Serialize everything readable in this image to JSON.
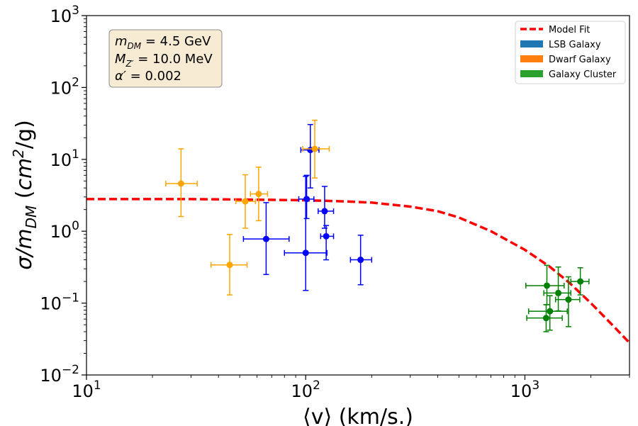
{
  "chart_data": {
    "type": "scatter",
    "title": "",
    "xlabel": "⟨v⟩ (km/s.)",
    "ylabel": "σ/m_DM (cm²/g)",
    "xscale": "log",
    "yscale": "log",
    "xlim": [
      10,
      3000
    ],
    "ylim": [
      0.01,
      1000
    ],
    "x_ticks": [
      {
        "base": "10",
        "exp": "1",
        "value": 10
      },
      {
        "base": "10",
        "exp": "2",
        "value": 100
      },
      {
        "base": "10",
        "exp": "3",
        "value": 1000
      }
    ],
    "y_ticks": [
      {
        "base": "10",
        "exp": "−2",
        "value": 0.01
      },
      {
        "base": "10",
        "exp": "−1",
        "value": 0.1
      },
      {
        "base": "10",
        "exp": "0",
        "value": 1
      },
      {
        "base": "10",
        "exp": "1",
        "value": 10
      },
      {
        "base": "10",
        "exp": "2",
        "value": 100
      },
      {
        "base": "10",
        "exp": "3",
        "value": 1000
      }
    ],
    "annotation": {
      "line1": {
        "sym": "m",
        "sub": "DM",
        "rest": " = 4.5 GeV"
      },
      "line2": {
        "sym": "M",
        "sub": "Z′",
        "rest": " = 10.0 MeV"
      },
      "line3": {
        "sym": "α′",
        "sub": "",
        "rest": " = 0.002"
      }
    },
    "legend_position": "upper-right",
    "series": [
      {
        "name": "Model Fit",
        "kind": "line",
        "style": "dashed",
        "color": "#ff0000",
        "x": [
          10,
          30,
          60,
          100,
          150,
          200,
          300,
          400,
          500,
          700,
          1000,
          1300,
          1600,
          2000,
          2500,
          3000
        ],
        "y": [
          2.8,
          2.8,
          2.75,
          2.7,
          2.6,
          2.5,
          2.2,
          1.9,
          1.55,
          1.0,
          0.55,
          0.32,
          0.19,
          0.1,
          0.05,
          0.028
        ]
      },
      {
        "name": "LSB Galaxy",
        "kind": "errorbar",
        "color": "#0000ff",
        "legend_color": "#1f77b4",
        "points": [
          {
            "x": 105,
            "y": 13.5,
            "xerr": [
              10,
              10
            ],
            "yerr": [
              9.5,
              17
            ]
          },
          {
            "x": 101,
            "y": 2.8,
            "xerr": [
              8,
              8
            ],
            "yerr": [
              1.3,
              3.2
            ]
          },
          {
            "x": 122,
            "y": 1.9,
            "xerr": [
              8,
              12
            ],
            "yerr": [
              0.8,
              2.3
            ]
          },
          {
            "x": 124,
            "y": 0.85,
            "xerr": [
              7,
              10
            ],
            "yerr": [
              0.45,
              0.35
            ]
          },
          {
            "x": 66,
            "y": 0.78,
            "xerr": [
              14,
              18
            ],
            "yerr": [
              0.53,
              1.72
            ]
          },
          {
            "x": 100,
            "y": 0.5,
            "xerr": [
              20,
              25
            ],
            "yerr": [
              0.35,
              5.3
            ]
          },
          {
            "x": 178,
            "y": 0.4,
            "xerr": [
              18,
              22
            ],
            "yerr": [
              0.22,
              0.48
            ]
          }
        ]
      },
      {
        "name": "Dwarf Galaxy",
        "kind": "errorbar",
        "color": "#ffa500",
        "legend_color": "#ff7f0e",
        "points": [
          {
            "x": 27,
            "y": 4.6,
            "xerr": [
              4,
              5
            ],
            "yerr": [
              3.0,
              9.4
            ]
          },
          {
            "x": 53,
            "y": 2.6,
            "xerr": [
              5,
              6
            ],
            "yerr": [
              1.5,
              3.5
            ]
          },
          {
            "x": 61,
            "y": 3.3,
            "xerr": [
              5,
              6
            ],
            "yerr": [
              1.9,
              4.5
            ]
          },
          {
            "x": 110,
            "y": 14,
            "xerr": [
              13,
              18
            ],
            "yerr": [
              8.5,
              21
            ]
          },
          {
            "x": 45,
            "y": 0.34,
            "xerr": [
              8,
              9
            ],
            "yerr": [
              0.21,
              0.56
            ]
          }
        ]
      },
      {
        "name": "Galaxy Cluster",
        "kind": "errorbar",
        "color": "#008000",
        "legend_color": "#2ca02c",
        "points": [
          {
            "x": 1260,
            "y": 0.175,
            "xerr": [
              250,
              250
            ],
            "yerr": [
              0.08,
              0.16
            ]
          },
          {
            "x": 1420,
            "y": 0.138,
            "xerr": [
              200,
              200
            ],
            "yerr": [
              0.06,
              0.18
            ]
          },
          {
            "x": 1580,
            "y": 0.112,
            "xerr": [
              200,
              200
            ],
            "yerr": [
              0.065,
              0.12
            ]
          },
          {
            "x": 1790,
            "y": 0.2,
            "xerr": [
              170,
              170
            ],
            "yerr": [
              0.07,
              0.11
            ]
          },
          {
            "x": 1300,
            "y": 0.077,
            "xerr": [
              260,
              260
            ],
            "yerr": [
              0.035,
              0.05
            ]
          },
          {
            "x": 1250,
            "y": 0.062,
            "xerr": [
              230,
              230
            ],
            "yerr": [
              0.022,
              0.033
            ]
          }
        ]
      }
    ]
  }
}
